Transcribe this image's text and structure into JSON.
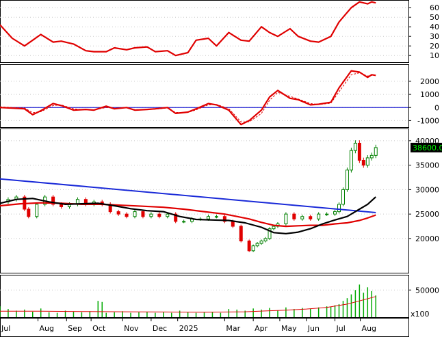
{
  "colors": {
    "background": "#ffffff",
    "frame": "#000000",
    "grid": "#c8c8c8",
    "rsi": "#e00000",
    "macd": "#e00000",
    "macd_zero": "#0000cc",
    "candle_up": "#008000",
    "candle_down": "#e00000",
    "trendline": "#1a2ad8",
    "ma_fast": "#000000",
    "ma_slow": "#e00000",
    "volume": "#00aa00",
    "volume_ma": "#e00000",
    "price_tag_bg": "#000000",
    "price_tag_fg": "#00ff00"
  },
  "chart_data": [
    {
      "type": "line",
      "panel": "rsi",
      "x_range": [
        0,
        100
      ],
      "ylim": [
        3,
        68
      ],
      "y_ticks": [
        "60",
        "50",
        "40",
        "30",
        "20",
        "10"
      ],
      "series": [
        {
          "x": [
            0,
            3,
            6,
            8,
            10,
            13,
            15,
            18,
            21,
            23,
            26,
            28,
            31,
            33,
            36,
            38,
            41,
            43,
            46,
            48,
            51,
            53,
            56,
            59,
            61,
            64,
            66,
            68,
            71,
            73,
            76,
            78,
            81,
            83,
            86,
            88,
            90,
            91,
            92
          ],
          "values": [
            42,
            28,
            20,
            26,
            32,
            24,
            25,
            22,
            15,
            14,
            14,
            18,
            16,
            18,
            19,
            14,
            15,
            10,
            13,
            26,
            28,
            20,
            34,
            26,
            25,
            40,
            34,
            30,
            38,
            30,
            25,
            24,
            30,
            45,
            60,
            66,
            64,
            66,
            65
          ]
        }
      ]
    },
    {
      "type": "line",
      "panel": "macd",
      "x_range": [
        0,
        100
      ],
      "ylim": [
        -1500,
        3300
      ],
      "y_ticks": [
        "2000",
        "1000",
        "0",
        "-1000"
      ],
      "series": [
        {
          "x": [
            0,
            3,
            6,
            8,
            10,
            13,
            15,
            18,
            21,
            23,
            26,
            28,
            31,
            33,
            36,
            38,
            41,
            43,
            46,
            48,
            51,
            53,
            56,
            59,
            61,
            64,
            66,
            68,
            71,
            73,
            76,
            78,
            81,
            83,
            86,
            88,
            90,
            91,
            92
          ],
          "values": [
            0,
            -50,
            -100,
            -550,
            -250,
            300,
            150,
            -200,
            -150,
            -200,
            100,
            -100,
            0,
            -200,
            -150,
            -100,
            0,
            -450,
            -350,
            -100,
            300,
            200,
            -200,
            -1300,
            -1000,
            -200,
            800,
            1300,
            700,
            600,
            200,
            250,
            400,
            1500,
            2800,
            2700,
            2300,
            2500,
            2450
          ]
        },
        {
          "x": [
            0,
            3,
            6,
            8,
            10,
            13,
            15,
            18,
            21,
            23,
            26,
            28,
            31,
            33,
            36,
            38,
            41,
            43,
            46,
            48,
            51,
            53,
            56,
            59,
            61,
            64,
            66,
            68,
            71,
            73,
            76,
            78,
            81,
            83,
            86,
            88,
            90,
            91,
            92
          ],
          "values": [
            50,
            0,
            -40,
            -400,
            -320,
            150,
            200,
            -100,
            -170,
            -180,
            0,
            -50,
            -20,
            -160,
            -170,
            -130,
            -40,
            -380,
            -380,
            -180,
            200,
            230,
            -80,
            -1100,
            -1100,
            -450,
            550,
            1150,
            850,
            650,
            300,
            220,
            330,
            1200,
            2500,
            2650,
            2400,
            2450,
            2450
          ],
          "style": "dashed"
        }
      ]
    },
    {
      "type": "candlestick",
      "panel": "price",
      "x_range": [
        0,
        100
      ],
      "ylim": [
        13000,
        42500
      ],
      "y_ticks": [
        "40000",
        "35000",
        "30000",
        "25000",
        "20000"
      ],
      "last_price": "38600.00",
      "x_ticks": [
        "Jul",
        "Aug",
        "Sep",
        "Oct",
        "Nov",
        "Dec",
        "2025",
        "Mar",
        "Apr",
        "May",
        "Jun",
        "Jul",
        "Aug"
      ],
      "x_tick_positions": [
        0,
        9.3,
        16.3,
        22.3,
        30,
        37,
        43.5,
        55,
        62,
        68.5,
        75,
        82,
        88.2
      ],
      "close": {
        "x": [
          0,
          2,
          4,
          6,
          7,
          9,
          11,
          13,
          15,
          17,
          19,
          21,
          23,
          25,
          27,
          29,
          31,
          33,
          35,
          37,
          39,
          41,
          43,
          45,
          47,
          49,
          51,
          53,
          55,
          57,
          59,
          61,
          62,
          63,
          64,
          65,
          66,
          67,
          68,
          70,
          72,
          74,
          76,
          78,
          80,
          82,
          83,
          84,
          85,
          86,
          87,
          88,
          89,
          90,
          91,
          92
        ],
        "values": [
          27500,
          28000,
          28500,
          26000,
          24500,
          27000,
          28500,
          27000,
          26500,
          27000,
          28000,
          27000,
          27500,
          27000,
          25500,
          25000,
          24500,
          25500,
          24500,
          25000,
          24500,
          25000,
          23500,
          23500,
          24000,
          24000,
          24500,
          24500,
          23500,
          22500,
          19500,
          17500,
          18500,
          19000,
          19500,
          20000,
          22000,
          22500,
          23000,
          25000,
          24000,
          24500,
          24000,
          25000,
          25000,
          25500,
          27000,
          30000,
          34000,
          38000,
          39500,
          36000,
          35000,
          36500,
          37000,
          38600
        ]
      },
      "series": [
        {
          "name": "",
          "x": [
            0,
            92
          ],
          "values": [
            32200,
            25300
          ]
        },
        {
          "name": "",
          "x": [
            0,
            4,
            8,
            12,
            16,
            20,
            24,
            28,
            32,
            36,
            40,
            44,
            48,
            52,
            56,
            60,
            64,
            67,
            70,
            73,
            76,
            79,
            82,
            85,
            88,
            90,
            92
          ],
          "values": [
            27200,
            28000,
            28200,
            27500,
            27000,
            27100,
            27200,
            26700,
            26100,
            25700,
            25500,
            24500,
            23900,
            23800,
            23700,
            23200,
            22300,
            21200,
            21000,
            21300,
            22000,
            23000,
            23800,
            24500,
            26000,
            27000,
            28500
          ]
        },
        {
          "name": "",
          "x": [
            0,
            5,
            10,
            15,
            20,
            25,
            30,
            35,
            40,
            45,
            50,
            55,
            58,
            61,
            64,
            67,
            70,
            73,
            76,
            79,
            82,
            85,
            88,
            90,
            92
          ],
          "values": [
            26700,
            27100,
            27300,
            27200,
            27000,
            27000,
            26800,
            26600,
            26400,
            26000,
            25500,
            25000,
            24500,
            24000,
            23300,
            22700,
            22500,
            22600,
            22700,
            22700,
            23000,
            23200,
            23700,
            24200,
            24800
          ]
        }
      ]
    },
    {
      "type": "bar",
      "panel": "volume",
      "x_range": [
        0,
        100
      ],
      "ylim": [
        0,
        78000
      ],
      "y_ticks": [
        "50000"
      ],
      "y_scale_label": "x100",
      "x": [
        0,
        2,
        4,
        6,
        8,
        10,
        12,
        14,
        16,
        18,
        20,
        22,
        24,
        25,
        26,
        28,
        30,
        32,
        34,
        36,
        38,
        40,
        42,
        44,
        46,
        48,
        50,
        52,
        54,
        56,
        58,
        60,
        62,
        64,
        66,
        68,
        70,
        72,
        74,
        76,
        78,
        80,
        81,
        82,
        83,
        84,
        85,
        86,
        87,
        88,
        89,
        90,
        91,
        92
      ],
      "values": [
        20000,
        15000,
        12000,
        14000,
        10000,
        16000,
        9000,
        8000,
        12000,
        10000,
        9000,
        11000,
        30000,
        28000,
        8000,
        9000,
        11000,
        8000,
        9000,
        10000,
        8000,
        9000,
        8000,
        12000,
        9000,
        8000,
        9000,
        10000,
        8000,
        15000,
        14000,
        12000,
        16000,
        14000,
        17000,
        12000,
        18000,
        15000,
        17000,
        16000,
        18000,
        20000,
        19000,
        22000,
        24000,
        30000,
        35000,
        42000,
        50000,
        60000,
        45000,
        55000,
        48000,
        40000
      ],
      "series": [
        {
          "name": "",
          "x": [
            0,
            10,
            20,
            30,
            40,
            50,
            60,
            70,
            75,
            80,
            85,
            88,
            92
          ],
          "values": [
            11000,
            11000,
            10500,
            10000,
            9500,
            9000,
            10000,
            13000,
            15000,
            18000,
            24000,
            30000,
            38000
          ]
        }
      ]
    }
  ]
}
